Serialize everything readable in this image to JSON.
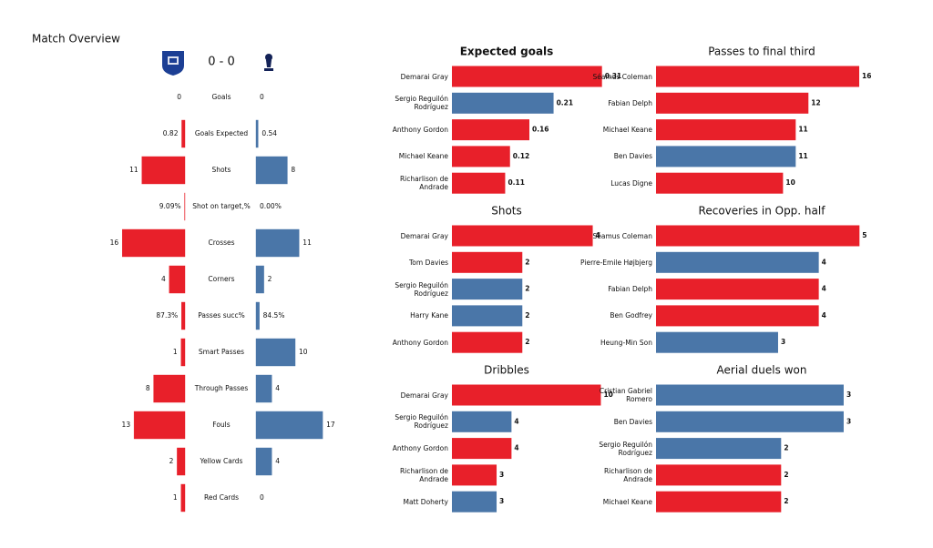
{
  "chart_data": [
    {
      "type": "butterfly",
      "title": "Match Overview",
      "score": "0 - 0",
      "categories": [
        "Goals",
        "Goals Expected",
        "Shots",
        "Shot on target,%",
        "Crosses",
        "Corners",
        "Passes succ%",
        "Smart Passes",
        "Through Passes",
        "Fouls",
        "Yellow Cards",
        "Red Cards"
      ],
      "xlim": [
        0,
        20
      ],
      "series": [
        {
          "color": "#e8202a",
          "values": [
            0,
            0.82,
            11,
            0.0909,
            16,
            4,
            0.873,
            1,
            8,
            13,
            2,
            1
          ],
          "value_labels": [
            "0",
            "0.82",
            "11",
            "9.09%",
            "16",
            "4",
            "87.3%",
            "1",
            "8",
            "13",
            "2",
            "1"
          ]
        },
        {
          "color": "#4a76a8",
          "values": [
            0,
            0.54,
            8,
            0,
            11,
            2,
            0.845,
            10,
            4,
            17,
            4,
            0
          ],
          "value_labels": [
            "0",
            "0.54",
            "8",
            "0.00%",
            "11",
            "2",
            "84.5%",
            "10",
            "4",
            "17",
            "4",
            "0"
          ]
        }
      ]
    },
    {
      "type": "hbar",
      "title": "Expected goals",
      "categories": [
        "Demarai Gray",
        "Sergio Reguilón Rodríguez",
        "Anthony Gordon",
        "Michael Keane",
        "Richarlison de Andrade"
      ],
      "values": [
        0.31,
        0.21,
        0.16,
        0.12,
        0.11
      ],
      "colors": [
        "#e8202a",
        "#4a76a8",
        "#e8202a",
        "#e8202a",
        "#e8202a"
      ],
      "xlim": [
        0,
        0.32
      ]
    },
    {
      "type": "hbar",
      "title": "Passes to final third",
      "categories": [
        "Séamus Coleman",
        "Fabian Delph",
        "Michael Keane",
        "Ben Davies",
        "Lucas Digne"
      ],
      "values": [
        16,
        12,
        11,
        11,
        10
      ],
      "colors": [
        "#e8202a",
        "#e8202a",
        "#e8202a",
        "#4a76a8",
        "#e8202a"
      ],
      "xlim": [
        0,
        16.5
      ]
    },
    {
      "type": "hbar",
      "title": "Shots",
      "categories": [
        "Demarai Gray",
        "Tom Davies",
        "Sergio Reguilón Rodríguez",
        "Harry Kane",
        "Anthony Gordon"
      ],
      "values": [
        4,
        2,
        2,
        2,
        2
      ],
      "colors": [
        "#e8202a",
        "#e8202a",
        "#4a76a8",
        "#4a76a8",
        "#e8202a"
      ],
      "xlim": [
        0,
        4.4
      ]
    },
    {
      "type": "hbar",
      "title": "Recoveries in Opp. half",
      "categories": [
        "Séamus Coleman",
        "Pierre-Emile Højbjerg",
        "Fabian Delph",
        "Ben Godfrey",
        "Heung-Min Son"
      ],
      "values": [
        5,
        4,
        4,
        4,
        3
      ],
      "colors": [
        "#e8202a",
        "#4a76a8",
        "#e8202a",
        "#e8202a",
        "#4a76a8"
      ],
      "xlim": [
        0,
        5.15
      ]
    },
    {
      "type": "hbar",
      "title": "Dribbles",
      "categories": [
        "Demarai Gray",
        "Sergio Reguilón Rodríguez",
        "Anthony Gordon",
        "Richarlison de Andrade",
        "Matt Doherty"
      ],
      "values": [
        10,
        4,
        4,
        3,
        3
      ],
      "colors": [
        "#e8202a",
        "#4a76a8",
        "#e8202a",
        "#e8202a",
        "#4a76a8"
      ],
      "xlim": [
        0,
        10.4
      ]
    },
    {
      "type": "hbar",
      "title": "Aerial duels won",
      "categories": [
        "Cristian Gabriel Romero",
        "Ben Davies",
        "Sergio Reguilón Rodríguez",
        "Richarlison de Andrade",
        "Michael Keane"
      ],
      "values": [
        3,
        3,
        2,
        2,
        2
      ],
      "colors": [
        "#4a76a8",
        "#4a76a8",
        "#4a76a8",
        "#e8202a",
        "#e8202a"
      ],
      "xlim": [
        0,
        3.35
      ]
    }
  ]
}
